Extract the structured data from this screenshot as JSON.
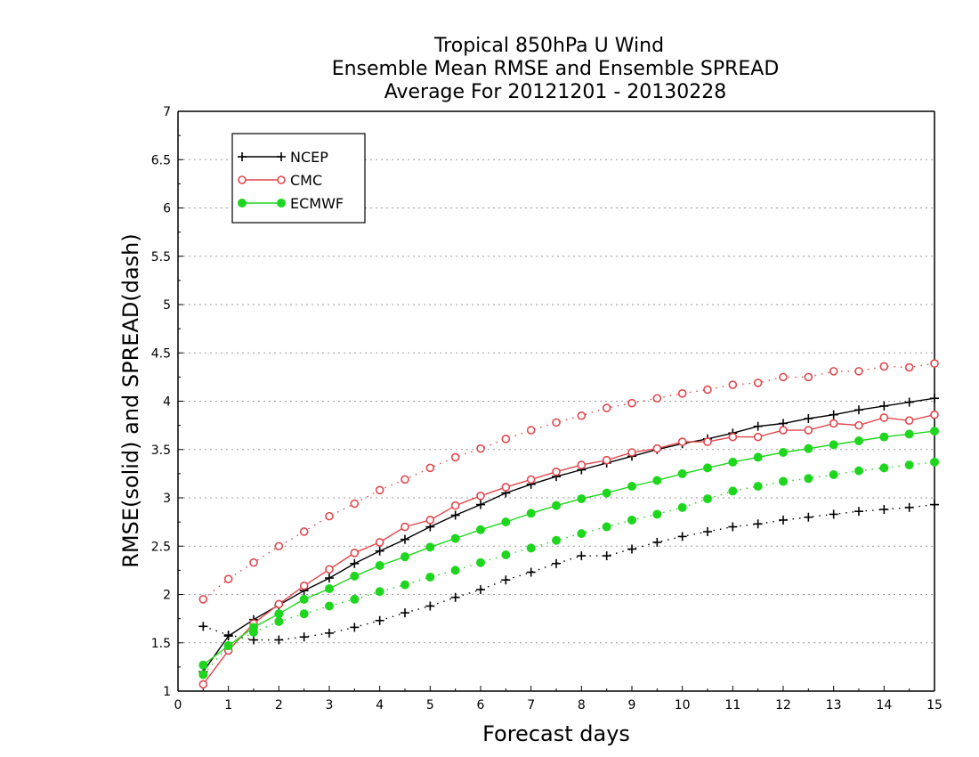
{
  "chart_data": {
    "type": "line",
    "title": [
      "Tropical 850hPa U Wind",
      "Ensemble Mean RMSE and Ensemble SPREAD",
      "Average For 20121201 - 20130228"
    ],
    "xlabel": "Forecast days",
    "ylabel": "RMSE(solid) and SPREAD(dash)",
    "xlim": [
      0,
      15
    ],
    "ylim": [
      1,
      7
    ],
    "xticks": [
      "0",
      "1",
      "2",
      "3",
      "4",
      "5",
      "6",
      "7",
      "8",
      "9",
      "10",
      "11",
      "12",
      "13",
      "14",
      "15"
    ],
    "yticks": [
      "1",
      "1.5",
      "2",
      "2.5",
      "3",
      "3.5",
      "4",
      "4.5",
      "5",
      "5.5",
      "6",
      "6.5",
      "7"
    ],
    "grid": "horizontal dotted",
    "legend": {
      "placement": "top-left",
      "entries": [
        "NCEP",
        "CMC",
        "ECMWF"
      ]
    },
    "x": [
      0.5,
      1,
      1.5,
      2,
      2.5,
      3,
      3.5,
      4,
      4.5,
      5,
      5.5,
      6,
      6.5,
      7,
      7.5,
      8,
      8.5,
      9,
      9.5,
      10,
      10.5,
      11,
      11.5,
      12,
      12.5,
      13,
      13.5,
      14,
      14.5,
      15
    ],
    "series": [
      {
        "name": "NCEP",
        "kind": "rmse",
        "style": "solid",
        "marker": "plus",
        "color": "#000000",
        "values": [
          1.2,
          1.57,
          1.74,
          1.89,
          2.04,
          2.17,
          2.32,
          2.45,
          2.57,
          2.7,
          2.82,
          2.93,
          3.05,
          3.14,
          3.22,
          3.29,
          3.36,
          3.43,
          3.5,
          3.56,
          3.61,
          3.67,
          3.74,
          3.77,
          3.82,
          3.86,
          3.91,
          3.95,
          3.99,
          4.03
        ]
      },
      {
        "name": "CMC",
        "kind": "rmse",
        "style": "solid",
        "marker": "open-circle",
        "color": "#e0474c",
        "values": [
          1.07,
          1.42,
          1.7,
          1.9,
          2.09,
          2.26,
          2.43,
          2.54,
          2.7,
          2.77,
          2.92,
          3.02,
          3.11,
          3.19,
          3.27,
          3.34,
          3.39,
          3.47,
          3.51,
          3.58,
          3.58,
          3.63,
          3.63,
          3.7,
          3.7,
          3.77,
          3.75,
          3.83,
          3.8,
          3.86
        ]
      },
      {
        "name": "ECMWF",
        "kind": "rmse",
        "style": "solid",
        "marker": "filled-circle",
        "color": "#1fd61f",
        "values": [
          1.27,
          1.47,
          1.66,
          1.8,
          1.95,
          2.06,
          2.19,
          2.3,
          2.39,
          2.49,
          2.58,
          2.67,
          2.75,
          2.84,
          2.92,
          2.99,
          3.05,
          3.12,
          3.18,
          3.25,
          3.31,
          3.37,
          3.42,
          3.47,
          3.51,
          3.55,
          3.59,
          3.63,
          3.66,
          3.69
        ]
      },
      {
        "name": "NCEP",
        "kind": "spread",
        "style": "dotted",
        "marker": "plus",
        "color": "#000000",
        "values": [
          1.67,
          1.58,
          1.53,
          1.53,
          1.56,
          1.6,
          1.66,
          1.73,
          1.81,
          1.88,
          1.97,
          2.05,
          2.15,
          2.23,
          2.32,
          2.4,
          2.4,
          2.47,
          2.54,
          2.6,
          2.65,
          2.7,
          2.73,
          2.77,
          2.8,
          2.83,
          2.86,
          2.88,
          2.9,
          2.93
        ]
      },
      {
        "name": "CMC",
        "kind": "spread",
        "style": "dotted",
        "marker": "open-circle",
        "color": "#e0474c",
        "values": [
          1.95,
          2.16,
          2.33,
          2.5,
          2.65,
          2.81,
          2.94,
          3.08,
          3.19,
          3.31,
          3.42,
          3.51,
          3.61,
          3.7,
          3.78,
          3.85,
          3.93,
          3.98,
          4.03,
          4.08,
          4.12,
          4.17,
          4.19,
          4.25,
          4.25,
          4.31,
          4.31,
          4.36,
          4.35,
          4.39
        ]
      },
      {
        "name": "ECMWF",
        "kind": "spread",
        "style": "dotted",
        "marker": "filled-circle",
        "color": "#1fd61f",
        "values": [
          1.17,
          1.47,
          1.61,
          1.72,
          1.8,
          1.88,
          1.95,
          2.03,
          2.1,
          2.18,
          2.25,
          2.33,
          2.41,
          2.48,
          2.56,
          2.63,
          2.7,
          2.77,
          2.83,
          2.9,
          2.99,
          3.07,
          3.12,
          3.17,
          3.2,
          3.24,
          3.28,
          3.31,
          3.34,
          3.37
        ]
      }
    ]
  }
}
